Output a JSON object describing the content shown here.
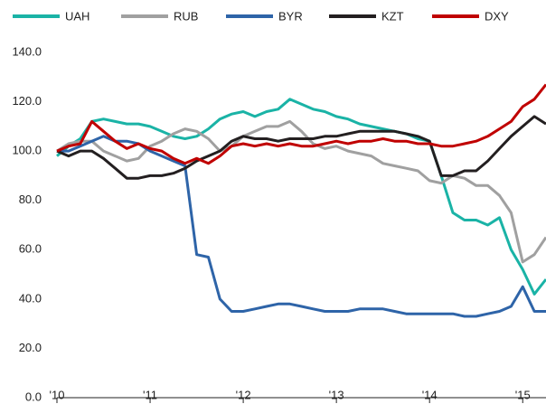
{
  "chart_data": {
    "type": "line",
    "x": [
      2010,
      2010.125,
      2010.25,
      2010.375,
      2010.5,
      2010.625,
      2010.75,
      2010.875,
      2011,
      2011.125,
      2011.25,
      2011.375,
      2011.5,
      2011.625,
      2011.75,
      2011.875,
      2012,
      2012.125,
      2012.25,
      2012.375,
      2012.5,
      2012.625,
      2012.75,
      2012.875,
      2013,
      2013.125,
      2013.25,
      2013.375,
      2013.5,
      2013.625,
      2013.75,
      2013.875,
      2014,
      2014.125,
      2014.25,
      2014.375,
      2014.5,
      2014.625,
      2014.75,
      2014.875,
      2015,
      2015.125,
      2015.25
    ],
    "series": [
      {
        "name": "UAH",
        "color": "#1ab3a6",
        "values": [
          98,
          102,
          105,
          112,
          113,
          112,
          111,
          111,
          110,
          108,
          106,
          105,
          106,
          109,
          113,
          115,
          116,
          114,
          116,
          117,
          121,
          119,
          117,
          116,
          114,
          113,
          111,
          110,
          109,
          108,
          107,
          105,
          104,
          90,
          75,
          72,
          72,
          70,
          73,
          60,
          52,
          42,
          48
        ]
      },
      {
        "name": "RUB",
        "color": "#a0a0a0",
        "values": [
          100,
          103,
          104,
          104,
          100,
          98,
          96,
          97,
          102,
          104,
          107,
          109,
          108,
          105,
          100,
          102,
          106,
          108,
          110,
          110,
          112,
          108,
          103,
          101,
          102,
          100,
          99,
          98,
          95,
          94,
          93,
          92,
          88,
          87,
          90,
          89,
          86,
          86,
          82,
          75,
          55,
          58,
          65
        ]
      },
      {
        "name": "BYR",
        "color": "#2e64a8",
        "values": [
          100,
          100,
          102,
          104,
          106,
          104,
          104,
          103,
          100,
          98,
          96,
          94,
          58,
          57,
          40,
          35,
          35,
          36,
          37,
          38,
          38,
          37,
          36,
          35,
          35,
          35,
          36,
          36,
          36,
          35,
          34,
          34,
          34,
          34,
          34,
          33,
          33,
          34,
          35,
          37,
          45,
          35,
          35
        ]
      },
      {
        "name": "KZT",
        "color": "#231f20",
        "values": [
          100,
          98,
          100,
          100,
          97,
          93,
          89,
          89,
          90,
          90,
          91,
          93,
          96,
          98,
          100,
          104,
          106,
          105,
          105,
          104,
          105,
          105,
          105,
          106,
          106,
          107,
          108,
          108,
          108,
          108,
          107,
          106,
          104,
          90,
          90,
          92,
          92,
          96,
          101,
          106,
          110,
          114,
          111
        ]
      },
      {
        "name": "DXY",
        "color": "#c00000",
        "values": [
          100,
          102,
          103,
          112,
          108,
          104,
          101,
          103,
          101,
          100,
          97,
          95,
          97,
          95,
          98,
          102,
          103,
          102,
          103,
          102,
          103,
          102,
          102,
          103,
          104,
          103,
          104,
          104,
          105,
          104,
          104,
          103,
          103,
          102,
          102,
          103,
          104,
          106,
          109,
          112,
          118,
          121,
          127
        ]
      }
    ],
    "xlim": [
      2010,
      2015.25
    ],
    "xticks": [
      {
        "value": 2010,
        "label": "'10"
      },
      {
        "value": 2011,
        "label": "'11"
      },
      {
        "value": 2012,
        "label": "'12"
      },
      {
        "value": 2013,
        "label": "'13"
      },
      {
        "value": 2014,
        "label": "'14"
      },
      {
        "value": 2015,
        "label": "'15"
      }
    ],
    "ylim": [
      0,
      140
    ],
    "yticks": [
      {
        "value": 0,
        "label": "0.0"
      },
      {
        "value": 20,
        "label": "20.0"
      },
      {
        "value": 40,
        "label": "40.0"
      },
      {
        "value": 60,
        "label": "60.0"
      },
      {
        "value": 80,
        "label": "80.0"
      },
      {
        "value": 100,
        "label": "100.0"
      },
      {
        "value": 120,
        "label": "120.0"
      },
      {
        "value": 140,
        "label": "140.0"
      }
    ],
    "grid": false,
    "legend": "top"
  }
}
